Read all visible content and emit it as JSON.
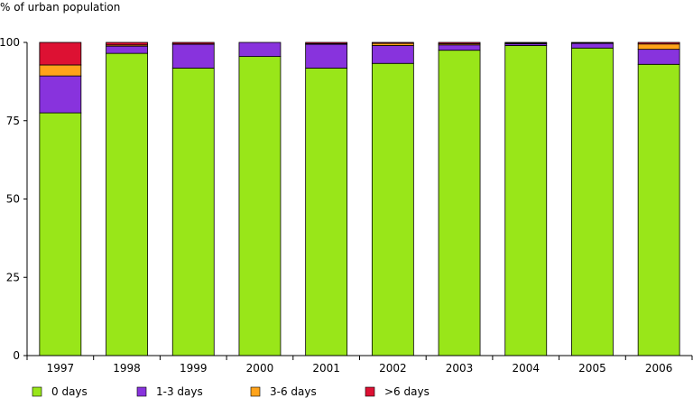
{
  "chart_data": {
    "type": "bar",
    "stacked": true,
    "title": "",
    "ylabel": "% of urban population",
    "xlabel": "",
    "ylim": [
      0,
      100
    ],
    "yticks": [
      0,
      25,
      50,
      75,
      100
    ],
    "grid": false,
    "legend_position": "bottom",
    "categories": [
      "1997",
      "1998",
      "1999",
      "2000",
      "2001",
      "2002",
      "2003",
      "2004",
      "2005",
      "2006"
    ],
    "series": [
      {
        "name": "0 days",
        "color": "#99e619",
        "values": [
          77.5,
          96.5,
          91.8,
          95.5,
          91.8,
          93.3,
          97.5,
          99.0,
          98.2,
          93.0
        ]
      },
      {
        "name": "1-3 days",
        "color": "#8833dd",
        "values": [
          11.8,
          2.3,
          7.6,
          4.5,
          7.6,
          5.7,
          1.7,
          0.6,
          1.5,
          4.8
        ]
      },
      {
        "name": "3-6 days",
        "color": "#ffa31a",
        "values": [
          3.5,
          0.4,
          0.1,
          0.0,
          0.2,
          0.7,
          0.4,
          0.2,
          0.1,
          1.7
        ]
      },
      {
        "name": ">6 days",
        "color": "#dd1133",
        "values": [
          7.2,
          0.8,
          0.5,
          0.0,
          0.4,
          0.3,
          0.4,
          0.2,
          0.2,
          0.5
        ]
      }
    ]
  }
}
